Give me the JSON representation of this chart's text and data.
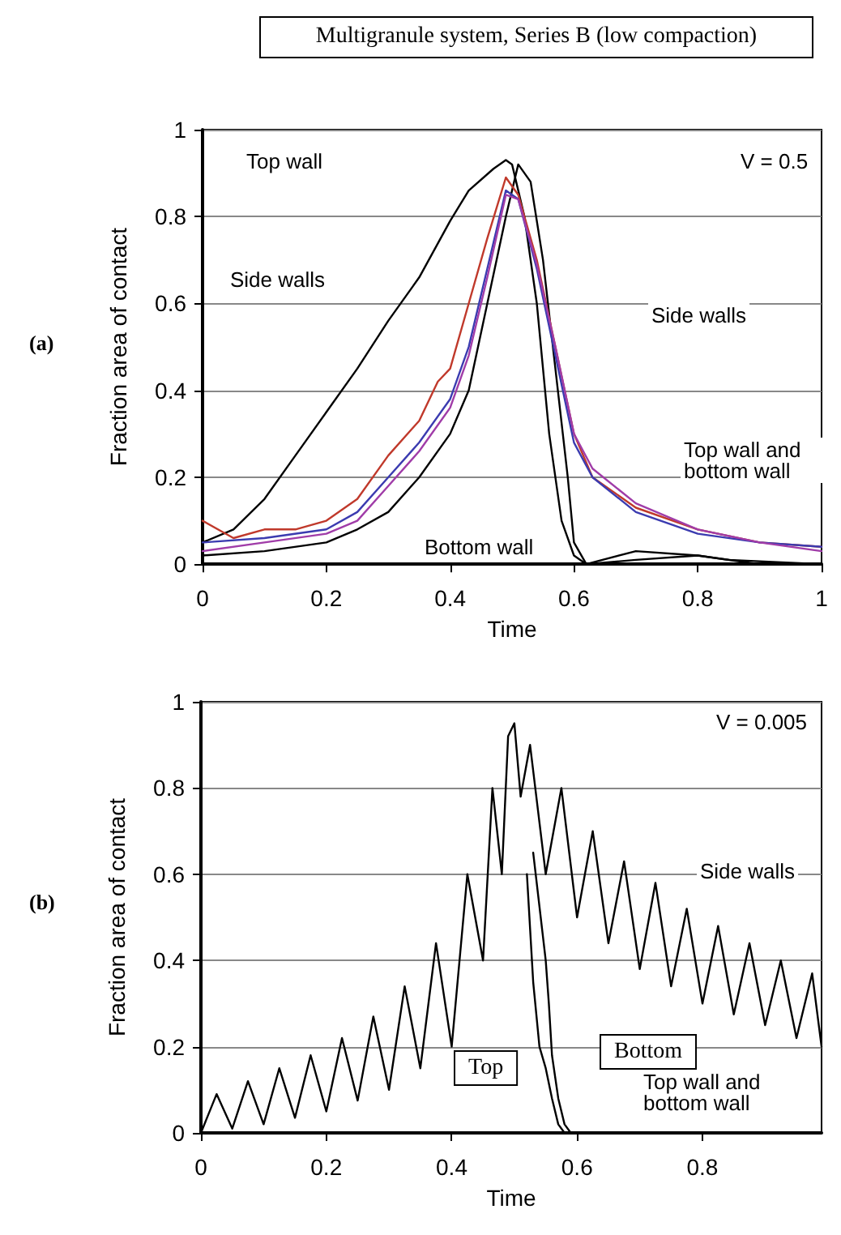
{
  "chart_data": [
    {
      "type": "line",
      "title": "Multigranule system, Series B (low compaction)",
      "xlabel": "Time",
      "ylabel": "Fraction area of contact",
      "xlim": [
        0,
        1
      ],
      "xticks": [
        0,
        0.2,
        0.4,
        0.6,
        0.8,
        1
      ],
      "ylim": [
        0,
        1
      ],
      "yticks": [
        0,
        0.2,
        0.4,
        0.6,
        0.8,
        1
      ],
      "grid": "y",
      "marker": "none",
      "line_style": "solid",
      "annotations": [
        "(a)",
        "V = 0.5",
        "Top wall",
        "Side walls",
        "Side walls",
        "Top wall and bottom wall",
        "Bottom wall"
      ],
      "series": [
        {
          "color": "#000000",
          "x": [
            0,
            0.05,
            0.1,
            0.15,
            0.2,
            0.25,
            0.3,
            0.35,
            0.4,
            0.43,
            0.47,
            0.49,
            0.5,
            0.52,
            0.54,
            0.56,
            0.58,
            0.6,
            0.62,
            0.7,
            0.8,
            0.85,
            1
          ],
          "values": [
            0.05,
            0.08,
            0.15,
            0.25,
            0.35,
            0.45,
            0.56,
            0.66,
            0.79,
            0.86,
            0.91,
            0.93,
            0.92,
            0.8,
            0.6,
            0.3,
            0.1,
            0.02,
            0,
            0.01,
            0.02,
            0.01,
            0
          ]
        },
        {
          "color": "#000000",
          "x": [
            0,
            0.1,
            0.2,
            0.25,
            0.3,
            0.35,
            0.4,
            0.43,
            0.46,
            0.49,
            0.51,
            0.53,
            0.55,
            0.57,
            0.59,
            0.6,
            0.62,
            0.7,
            0.8,
            0.9,
            1
          ],
          "values": [
            0.02,
            0.03,
            0.05,
            0.08,
            0.12,
            0.2,
            0.3,
            0.4,
            0.6,
            0.8,
            0.92,
            0.88,
            0.7,
            0.45,
            0.2,
            0.05,
            0,
            0.03,
            0.02,
            0,
            0
          ]
        },
        {
          "color": "#c0392b",
          "x": [
            0,
            0.05,
            0.1,
            0.15,
            0.2,
            0.25,
            0.3,
            0.35,
            0.38,
            0.4,
            0.43,
            0.46,
            0.49,
            0.51,
            0.54,
            0.57,
            0.6,
            0.63,
            0.7,
            0.8,
            0.9,
            1
          ],
          "values": [
            0.1,
            0.06,
            0.08,
            0.08,
            0.1,
            0.15,
            0.25,
            0.33,
            0.42,
            0.45,
            0.6,
            0.75,
            0.89,
            0.85,
            0.7,
            0.5,
            0.3,
            0.2,
            0.13,
            0.08,
            0.05,
            0.04
          ]
        },
        {
          "color": "#3b3bb0",
          "x": [
            0,
            0.1,
            0.2,
            0.25,
            0.3,
            0.35,
            0.4,
            0.43,
            0.46,
            0.49,
            0.51,
            0.54,
            0.57,
            0.6,
            0.63,
            0.7,
            0.8,
            0.9,
            1
          ],
          "values": [
            0.05,
            0.06,
            0.08,
            0.12,
            0.2,
            0.28,
            0.38,
            0.5,
            0.68,
            0.86,
            0.84,
            0.68,
            0.48,
            0.28,
            0.2,
            0.12,
            0.07,
            0.05,
            0.04
          ]
        },
        {
          "color": "#a03ca8",
          "x": [
            0,
            0.1,
            0.2,
            0.25,
            0.3,
            0.35,
            0.4,
            0.43,
            0.46,
            0.49,
            0.51,
            0.54,
            0.57,
            0.6,
            0.63,
            0.7,
            0.8,
            0.9,
            1
          ],
          "values": [
            0.03,
            0.05,
            0.07,
            0.1,
            0.18,
            0.26,
            0.36,
            0.48,
            0.66,
            0.85,
            0.84,
            0.69,
            0.5,
            0.3,
            0.22,
            0.14,
            0.08,
            0.05,
            0.03
          ]
        }
      ]
    },
    {
      "type": "line",
      "xlabel": "Time",
      "ylabel": "Fraction area of contact",
      "xlim": [
        0,
        0.99
      ],
      "xticks": [
        0,
        0.2,
        0.4,
        0.6,
        0.8
      ],
      "ylim": [
        0,
        1
      ],
      "yticks": [
        0,
        0.2,
        0.4,
        0.6,
        0.8,
        1
      ],
      "grid": "y",
      "marker": "none",
      "line_style": "solid",
      "annotations": [
        "(b)",
        "V = 0.005",
        "Side walls",
        "Top",
        "Bottom",
        "Top wall and bottom wall"
      ],
      "series": [
        {
          "color": "#000000",
          "x": [
            0,
            0.025,
            0.05,
            0.075,
            0.1,
            0.125,
            0.15,
            0.175,
            0.2,
            0.225,
            0.25,
            0.275,
            0.3,
            0.325,
            0.35,
            0.375,
            0.4,
            0.425,
            0.45,
            0.465,
            0.48,
            0.49,
            0.5,
            0.51,
            0.525,
            0.55,
            0.575,
            0.6,
            0.625,
            0.65,
            0.675,
            0.7,
            0.725,
            0.75,
            0.775,
            0.8,
            0.825,
            0.85,
            0.875,
            0.9,
            0.925,
            0.95,
            0.975,
            0.99
          ],
          "values": [
            0,
            0.09,
            0.01,
            0.12,
            0.02,
            0.15,
            0.035,
            0.18,
            0.05,
            0.22,
            0.075,
            0.27,
            0.1,
            0.34,
            0.15,
            0.44,
            0.2,
            0.6,
            0.4,
            0.8,
            0.6,
            0.92,
            0.95,
            0.78,
            0.9,
            0.6,
            0.8,
            0.5,
            0.7,
            0.44,
            0.63,
            0.38,
            0.58,
            0.34,
            0.52,
            0.3,
            0.48,
            0.275,
            0.44,
            0.25,
            0.4,
            0.22,
            0.37,
            0.2
          ]
        },
        {
          "color": "#000000",
          "x": [
            0.52,
            0.53,
            0.54,
            0.55,
            0.56,
            0.57,
            0.58
          ],
          "values": [
            0.6,
            0.35,
            0.2,
            0.15,
            0.08,
            0.02,
            0
          ]
        },
        {
          "color": "#000000",
          "x": [
            0.53,
            0.55,
            0.555,
            0.56,
            0.57,
            0.58,
            0.59
          ],
          "values": [
            0.65,
            0.4,
            0.3,
            0.18,
            0.08,
            0.02,
            0
          ]
        }
      ]
    }
  ]
}
